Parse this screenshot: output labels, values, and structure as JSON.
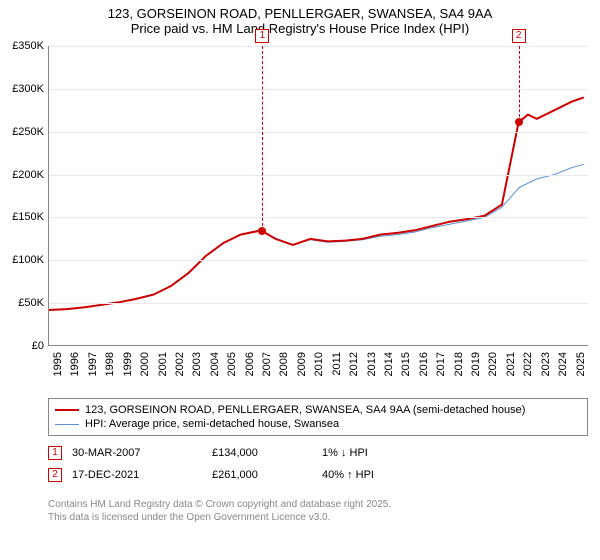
{
  "title": {
    "line1": "123, GORSEINON ROAD, PENLLERGAER, SWANSEA, SA4 9AA",
    "line2": "Price paid vs. HM Land Registry's House Price Index (HPI)",
    "fontsize": 13,
    "color": "#000000"
  },
  "chart": {
    "type": "line",
    "background_color": "#ffffff",
    "grid_color": "#e8e8ee",
    "axis_color": "#888888",
    "xlim": [
      1995,
      2026
    ],
    "ylim": [
      0,
      350000
    ],
    "ytick_step": 50000,
    "yticks": [
      "£0",
      "£50K",
      "£100K",
      "£150K",
      "£200K",
      "£250K",
      "£300K",
      "£350K"
    ],
    "xticks": [
      "1995",
      "1996",
      "1997",
      "1998",
      "1999",
      "2000",
      "2001",
      "2002",
      "2003",
      "2004",
      "2005",
      "2006",
      "2007",
      "2008",
      "2009",
      "2010",
      "2011",
      "2012",
      "2013",
      "2014",
      "2015",
      "2016",
      "2017",
      "2018",
      "2019",
      "2020",
      "2021",
      "2022",
      "2023",
      "2024",
      "2025"
    ],
    "label_fontsize": 11,
    "series": [
      {
        "name": "123, GORSEINON ROAD, PENLLERGAER, SWANSEA, SA4 9AA (semi-detached house)",
        "color": "#cc0000",
        "width": 2,
        "x": [
          1995,
          1996,
          1997,
          1998,
          1999,
          2000,
          2001,
          2002,
          2003,
          2004,
          2005,
          2006,
          2007,
          2007.25,
          2008,
          2009,
          2010,
          2011,
          2012,
          2013,
          2014,
          2015,
          2016,
          2017,
          2018,
          2019,
          2020,
          2021,
          2021.96,
          2022.5,
          2023,
          2024,
          2025,
          2025.7
        ],
        "y": [
          42000,
          43000,
          45000,
          48000,
          51000,
          55000,
          60000,
          70000,
          85000,
          105000,
          120000,
          130000,
          134000,
          134000,
          125000,
          118000,
          125000,
          122000,
          123000,
          125000,
          130000,
          132000,
          135000,
          140000,
          145000,
          148000,
          152000,
          165000,
          261000,
          270000,
          265000,
          275000,
          285000,
          290000
        ]
      },
      {
        "name": "HPI: Average price, semi-detached house, Swansea",
        "color": "#5b8fd6",
        "width": 1,
        "x": [
          1995,
          1996,
          1997,
          1998,
          1999,
          2000,
          2001,
          2002,
          2003,
          2004,
          2005,
          2006,
          2007,
          2008,
          2009,
          2010,
          2011,
          2012,
          2013,
          2014,
          2015,
          2016,
          2017,
          2018,
          2019,
          2020,
          2021,
          2022,
          2023,
          2024,
          2025,
          2025.7
        ],
        "y": [
          42000,
          43000,
          45000,
          48000,
          51000,
          55000,
          60000,
          70000,
          85000,
          105000,
          120000,
          130000,
          135000,
          126000,
          118000,
          124000,
          121000,
          122000,
          124000,
          128000,
          130000,
          133000,
          138000,
          142000,
          146000,
          150000,
          162000,
          185000,
          195000,
          200000,
          208000,
          212000
        ]
      }
    ],
    "sale_markers": [
      {
        "n": "1",
        "x": 2007.25,
        "y": 134000,
        "marker_top_offset": -20
      },
      {
        "n": "2",
        "x": 2021.96,
        "y": 261000,
        "marker_top_offset": -20
      }
    ]
  },
  "legend": {
    "border_color": "#888888",
    "items": [
      {
        "label": "123, GORSEINON ROAD, PENLLERGAER, SWANSEA, SA4 9AA (semi-detached house)",
        "color": "#cc0000",
        "width": 2
      },
      {
        "label": "HPI: Average price, semi-detached house, Swansea",
        "color": "#5b8fd6",
        "width": 1
      }
    ]
  },
  "sales": [
    {
      "n": "1",
      "date": "30-MAR-2007",
      "price": "£134,000",
      "pct": "1% ↓ HPI"
    },
    {
      "n": "2",
      "date": "17-DEC-2021",
      "price": "£261,000",
      "pct": "40% ↑ HPI"
    }
  ],
  "footer": {
    "line1": "Contains HM Land Registry data © Crown copyright and database right 2025.",
    "line2": "This data is licensed under the Open Government Licence v3.0.",
    "color": "#888888"
  }
}
